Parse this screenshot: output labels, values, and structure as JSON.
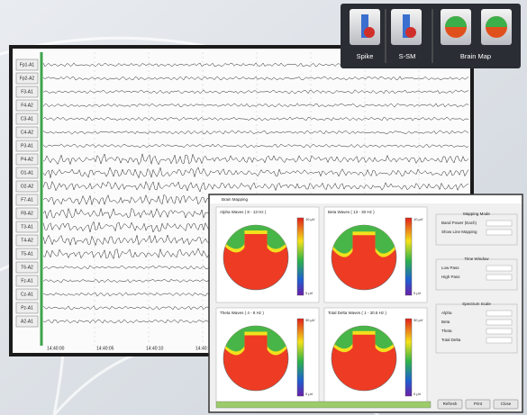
{
  "toolbar": {
    "buttons": [
      "Spike",
      "S-SM",
      "Brain Map"
    ]
  },
  "eeg": {
    "channels": [
      "Fp1-A1",
      "Fp2-A2",
      "F3-A1",
      "F4-A2",
      "C3-A1",
      "C4-A2",
      "P3-A1",
      "P4-A2",
      "O1-A1",
      "O2-A2",
      "F7-A1",
      "F8-A2",
      "T3-A1",
      "T4-A2",
      "T5-A1",
      "T6-A2",
      "Fz-A1",
      "Cz-A1",
      "Pz-A1",
      "A2-A1"
    ],
    "time_labels": [
      "14:40:00",
      "14:40:05",
      "14:40:10",
      "14:40:15"
    ]
  },
  "dialog": {
    "title": "Brain Mapping",
    "maps": [
      {
        "title": "Alpha Waves ( 8 - 13 Hz )",
        "scale_max": "10 µV",
        "scale_min": "0 µV"
      },
      {
        "title": "Beta Waves ( 13 - 30 Hz )",
        "scale_max": "10 µV",
        "scale_min": "0 µV"
      },
      {
        "title": "Theta Waves ( 4 - 8 Hz )",
        "scale_max": "30 µV",
        "scale_min": "0 µV"
      },
      {
        "title": "Total Delta Waves ( 1 - 30.5 Hz )",
        "scale_max": "30 µV",
        "scale_min": "0 µV"
      }
    ],
    "groups": [
      {
        "title": "Mapping Mode",
        "items": [
          "Band Power (Each)",
          "Show Line Mapping"
        ]
      },
      {
        "title": "Time Window",
        "items": [
          "Low Pass",
          "High Pass"
        ]
      },
      {
        "title": "Spectrum Scale",
        "items": [
          "Alpha",
          "Beta",
          "Theta",
          "Total Delta"
        ]
      }
    ],
    "buttons": [
      "Refresh",
      "Print",
      "Close"
    ]
  }
}
